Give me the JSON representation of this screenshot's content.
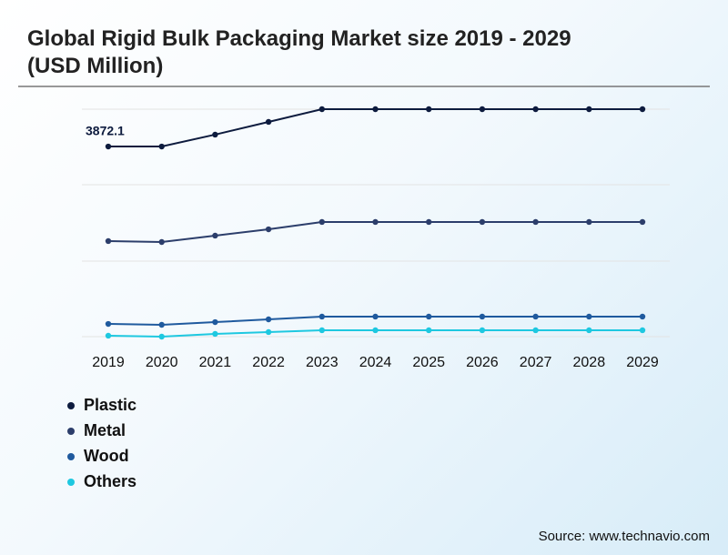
{
  "chart_data": {
    "type": "line",
    "title": "Global Rigid Bulk Packaging Market size 2019 - 2029 (USD Million)",
    "categories": [
      "2019",
      "2020",
      "2021",
      "2022",
      "2023",
      "2024",
      "2025",
      "2026",
      "2027",
      "2028",
      "2029"
    ],
    "series": [
      {
        "name": "Plastic",
        "color": "#0d1b3e",
        "values": [
          3872.1,
          3872,
          4114,
          4373,
          4632,
          4632,
          4632,
          4632,
          4632,
          4632,
          4632
        ]
      },
      {
        "name": "Metal",
        "color": "#2c3e6b",
        "values": [
          1946,
          1927,
          2057,
          2186,
          2335,
          2335,
          2335,
          2335,
          2335,
          2335,
          2335
        ]
      },
      {
        "name": "Wood",
        "color": "#1f5a9e",
        "values": [
          259,
          241,
          296,
          352,
          408,
          408,
          408,
          408,
          408,
          408,
          408
        ]
      },
      {
        "name": "Others",
        "color": "#1ec8e0",
        "values": [
          19,
          0,
          56,
          93,
          130,
          130,
          130,
          130,
          130,
          130,
          130
        ]
      }
    ],
    "ylim": [
      0,
      4632
    ],
    "source": "Source: www.technavio.com"
  }
}
